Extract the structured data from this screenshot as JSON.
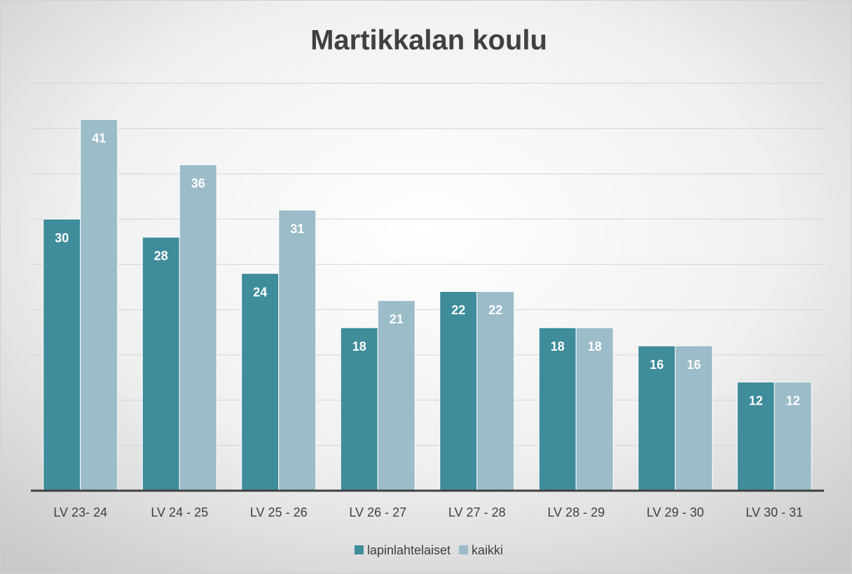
{
  "chart_data": {
    "type": "bar",
    "title": "Martikkalan koulu",
    "categories": [
      "LV 23- 24",
      "LV 24 - 25",
      "LV 25 - 26",
      "LV 26 - 27",
      "LV 27 - 28",
      "LV 28 - 29",
      "LV 29 - 30",
      "LV 30 - 31"
    ],
    "series": [
      {
        "name": "lapinlahtelaiset",
        "color": "#3f8c9b",
        "values": [
          30,
          28,
          24,
          18,
          22,
          18,
          16,
          12
        ]
      },
      {
        "name": "kaikki",
        "color": "#9bbcc8",
        "values": [
          41,
          36,
          31,
          21,
          22,
          18,
          16,
          12
        ]
      }
    ],
    "ylim": [
      0,
      45
    ],
    "yticks": [
      0,
      5,
      10,
      15,
      20,
      25,
      30,
      35,
      40,
      45
    ],
    "grid": true,
    "legend": "bottom"
  }
}
